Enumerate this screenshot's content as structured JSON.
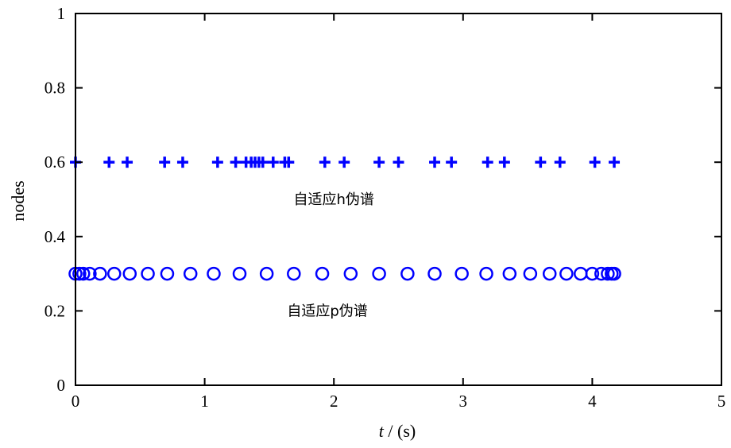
{
  "chart_data": {
    "type": "scatter",
    "title": "",
    "xlabel_italic": "t",
    "xlabel_rest": " / (s)",
    "ylabel": "nodes",
    "xlim": [
      0,
      5
    ],
    "ylim": [
      0,
      1
    ],
    "grid": false,
    "x_ticks": [
      0,
      1,
      2,
      3,
      4,
      5
    ],
    "x_tick_labels": [
      "0",
      "1",
      "2",
      "3",
      "4",
      "5"
    ],
    "y_ticks": [
      0,
      0.2,
      0.4,
      0.6,
      0.8,
      1
    ],
    "y_tick_labels": [
      "0",
      "0.2",
      "0.4",
      "0.6",
      "0.8",
      "1"
    ],
    "marker_color": "#0000ff",
    "series": [
      {
        "marker": "plus",
        "y": 0.6,
        "x": [
          0,
          0.26,
          0.4,
          0.69,
          0.83,
          1.1,
          1.24,
          1.32,
          1.36,
          1.39,
          1.42,
          1.45,
          1.53,
          1.62,
          1.65,
          1.93,
          2.08,
          2.35,
          2.5,
          2.78,
          2.91,
          3.19,
          3.32,
          3.6,
          3.75,
          4.02,
          4.17
        ]
      },
      {
        "marker": "circle",
        "y": 0.3,
        "x": [
          0,
          0.03,
          0.06,
          0.11,
          0.19,
          0.3,
          0.42,
          0.56,
          0.71,
          0.89,
          1.07,
          1.27,
          1.48,
          1.69,
          1.91,
          2.13,
          2.35,
          2.57,
          2.78,
          2.99,
          3.18,
          3.36,
          3.52,
          3.67,
          3.8,
          3.91,
          4.0,
          4.07,
          4.12,
          4.15,
          4.17
        ]
      }
    ],
    "annotations": [
      {
        "text": "自适应h伪谱",
        "x": 2.0,
        "y": 0.5
      },
      {
        "text": "自适应p伪谱",
        "x": 1.95,
        "y": 0.2
      }
    ]
  }
}
